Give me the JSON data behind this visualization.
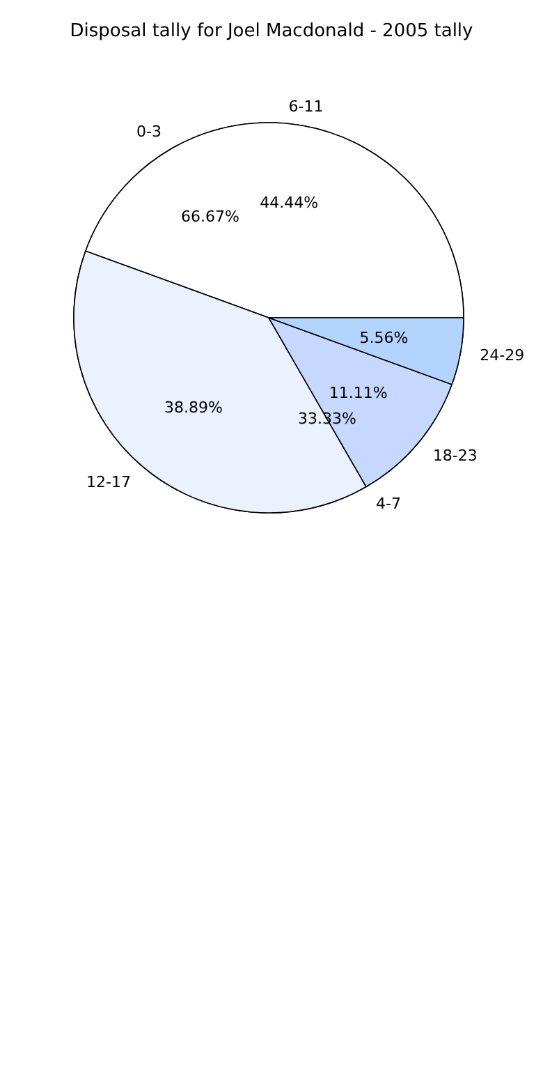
{
  "chart_data": [
    {
      "type": "pie",
      "title": "Disposal tally for Joel Macdonald - 2005 tally",
      "categories": [
        "0-3",
        "4-7"
      ],
      "values": [
        66.67,
        33.33
      ],
      "colors": [
        "#ffffff",
        "#eaf1ff"
      ],
      "value_labels": [
        "66.67%",
        "33.33%"
      ]
    },
    {
      "type": "pie",
      "categories": [
        "6-11",
        "12-17",
        "18-23",
        "24-29"
      ],
      "values": [
        44.44,
        38.89,
        11.11,
        5.56
      ],
      "colors": [
        "#ffffff",
        "#eaf1ff",
        "#c6d8ff",
        "#b3d4ff"
      ],
      "value_labels": [
        "44.44%",
        "38.89%",
        "11.11%",
        "5.56%"
      ]
    }
  ]
}
